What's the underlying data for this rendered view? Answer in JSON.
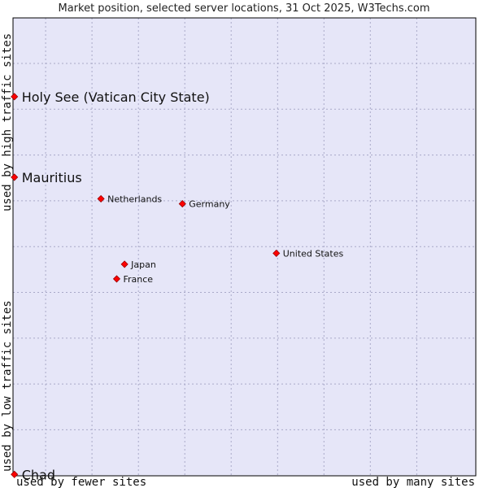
{
  "chart_data": {
    "type": "scatter",
    "title": "Market position, selected server locations, 31 Oct 2025, W3Techs.com",
    "xlabel_low": "used by fewer sites",
    "xlabel_high": "used by many sites",
    "ylabel_low": "used by low traffic sites",
    "ylabel_high": "used by high traffic sites",
    "xlim": [
      0,
      100
    ],
    "ylim": [
      0,
      100
    ],
    "grid": true,
    "points": [
      {
        "label": "Holy See (Vatican City State)",
        "x": 0.3,
        "y": 82.8,
        "highlight": true
      },
      {
        "label": "Mauritius",
        "x": 0.3,
        "y": 65.2,
        "highlight": true
      },
      {
        "label": "Netherlands",
        "x": 19.0,
        "y": 60.5,
        "highlight": false
      },
      {
        "label": "Germany",
        "x": 36.6,
        "y": 59.4,
        "highlight": false
      },
      {
        "label": "United States",
        "x": 56.9,
        "y": 48.6,
        "highlight": false
      },
      {
        "label": "Japan",
        "x": 24.1,
        "y": 46.2,
        "highlight": false
      },
      {
        "label": "France",
        "x": 22.4,
        "y": 43.0,
        "highlight": false
      },
      {
        "label": "Chad",
        "x": 0.3,
        "y": 0.3,
        "highlight": true
      }
    ]
  },
  "colors": {
    "plot_bg": "#e6e6f8",
    "grid": "#a9a9c8",
    "marker": "#ff0000",
    "marker_stroke": "#990000"
  }
}
